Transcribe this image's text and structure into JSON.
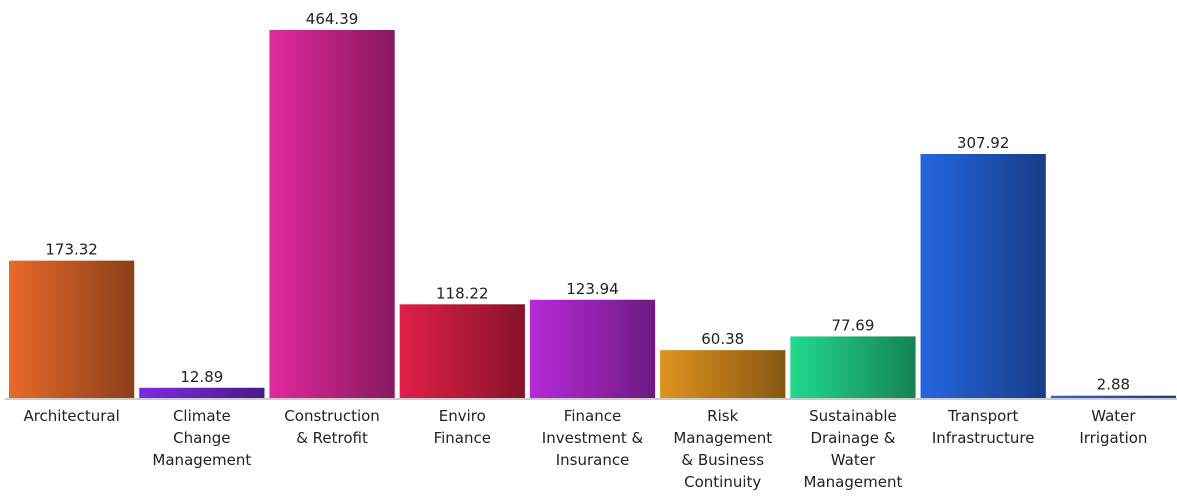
{
  "chart_data": {
    "type": "bar",
    "categories": [
      "Architectural",
      "Climate\nChange\nManagement",
      "Construction\n& Retrofit",
      "Enviro\nFinance",
      "Finance\nInvestment &\nInsurance",
      "Risk\nManagement\n& Business\nContinuity",
      "Sustainable\nDrainage &\nWater\nManagement",
      "Transport\nInfrastructure",
      "Water\nIrrigation"
    ],
    "values": [
      173.32,
      12.89,
      464.39,
      118.22,
      123.94,
      60.38,
      77.69,
      307.92,
      2.88
    ],
    "colors": [
      "#e8692a",
      "#7d2be0",
      "#e0299e",
      "#e01f48",
      "#b62ad8",
      "#e0921e",
      "#22d98e",
      "#2566e0",
      "#3a5fcd"
    ]
  }
}
